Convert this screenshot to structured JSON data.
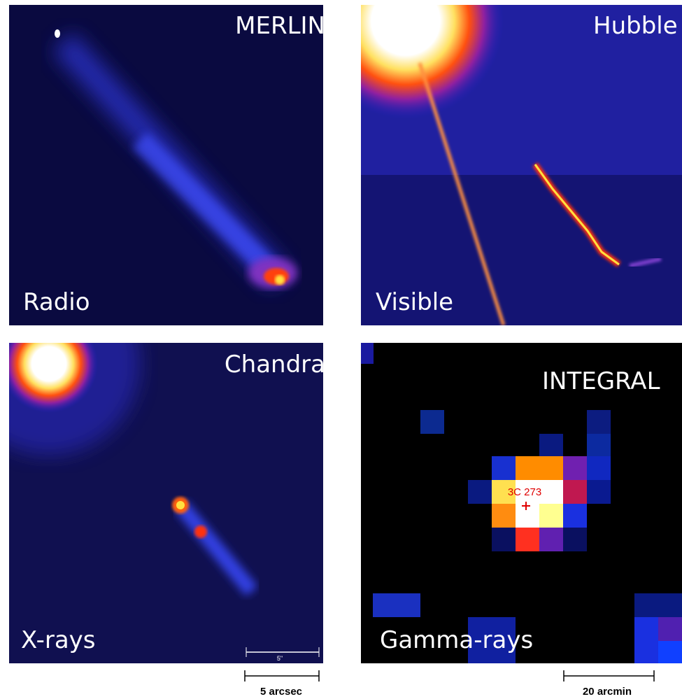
{
  "panels": [
    {
      "instrument": "MERLIN",
      "band": "Radio"
    },
    {
      "instrument": "Hubble",
      "band": "Visible"
    },
    {
      "instrument": "Chandra",
      "band": "X-rays",
      "inner_scale": "5\""
    },
    {
      "instrument": "INTEGRAL",
      "band": "Gamma-rays",
      "source": "3C 273"
    }
  ],
  "scale_bars": [
    "5 arcsec",
    "20 arcmin"
  ]
}
